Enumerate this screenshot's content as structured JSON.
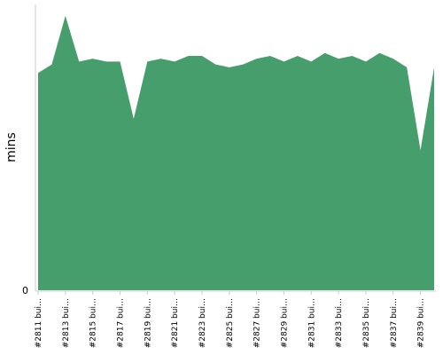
{
  "chart_data": {
    "type": "area",
    "y_label": "mins",
    "categories": [
      "#2811 bui…",
      null,
      "#2813 bui…",
      null,
      "#2815 bui…",
      null,
      "#2817 bui…",
      null,
      "#2819 bui…",
      null,
      "#2821 bui…",
      null,
      "#2823 bui…",
      null,
      "#2825 bui…",
      null,
      "#2827 bui…",
      null,
      "#2829 bui…",
      null,
      "#2831 bui…",
      null,
      "#2833 bui…",
      null,
      "#2835 bui…",
      null,
      "#2837 bui…",
      null,
      "#2839 bui…",
      null
    ],
    "values": [
      76,
      79,
      96,
      80,
      81,
      80,
      80,
      60,
      80,
      81,
      80,
      82,
      82,
      79,
      78,
      79,
      81,
      82,
      80,
      82,
      80,
      83,
      81,
      82,
      80,
      83,
      81,
      78,
      49,
      78
    ],
    "color": "#459e6c",
    "ylim": [
      0,
      100
    ],
    "yticks": [
      0
    ],
    "grid": false
  }
}
